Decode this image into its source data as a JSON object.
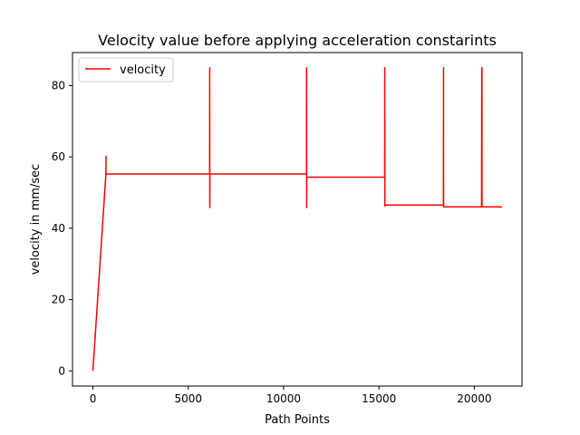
{
  "chart_data": {
    "type": "line",
    "title": "Velocity value before applying acceleration constarints",
    "xlabel": "Path Points",
    "ylabel": "velocity in mm/sec",
    "xlim": [
      -1070,
      22500
    ],
    "ylim": [
      -4.25,
      89.25
    ],
    "x_ticks": [
      0,
      5000,
      10000,
      15000,
      20000
    ],
    "y_ticks": [
      0,
      20,
      40,
      60,
      80
    ],
    "grid": false,
    "legend_position": "top-left",
    "colors": {
      "velocity": "#ff0000",
      "axes": "#000000"
    },
    "series": [
      {
        "name": "velocity",
        "x": [
          0,
          680,
          690,
          680,
          700,
          6120,
          6125,
          6130,
          6135,
          6140,
          11200,
          11205,
          11210,
          11215,
          11220,
          15300,
          15305,
          15310,
          15315,
          15320,
          18380,
          18385,
          18390,
          18395,
          18400,
          20380,
          20390,
          20395,
          20400,
          20405,
          20410,
          21450
        ],
        "y": [
          0,
          55,
          60.2,
          55.2,
          55.2,
          55.2,
          85,
          45.8,
          55.2,
          55.2,
          55.2,
          85,
          45.8,
          54.3,
          54.3,
          54.3,
          85,
          46.2,
          46.5,
          46.5,
          46.5,
          85,
          46,
          46,
          46,
          46,
          85,
          46,
          85,
          46,
          46,
          46
        ]
      }
    ]
  }
}
